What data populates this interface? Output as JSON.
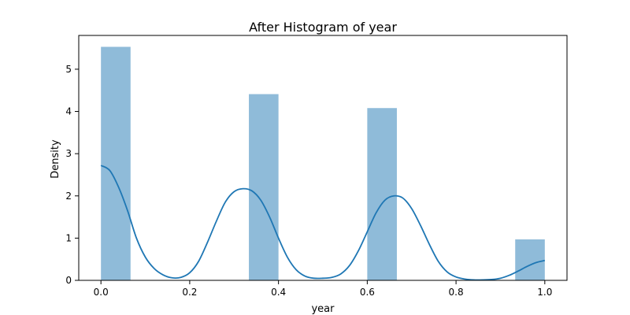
{
  "chart_data": {
    "type": "bar",
    "title": "After Histogram of year",
    "xlabel": "year",
    "ylabel": "Density",
    "xlim": [
      -0.05,
      1.05
    ],
    "ylim": [
      0,
      5.8
    ],
    "xticks": [
      "0.0",
      "0.2",
      "0.4",
      "0.6",
      "0.8",
      "1.0"
    ],
    "yticks": [
      "0",
      "1",
      "2",
      "3",
      "4",
      "5"
    ],
    "grid": false,
    "bins": [
      {
        "x0": 0.0,
        "x1": 0.0667,
        "density": 5.53
      },
      {
        "x0": 0.3333,
        "x1": 0.4,
        "density": 4.41
      },
      {
        "x0": 0.6,
        "x1": 0.6667,
        "density": 4.08
      },
      {
        "x0": 0.9333,
        "x1": 1.0,
        "density": 0.97
      }
    ],
    "kde": {
      "x": [
        0.0,
        0.02,
        0.04,
        0.06,
        0.08,
        0.1,
        0.12,
        0.14,
        0.16,
        0.18,
        0.2,
        0.22,
        0.24,
        0.26,
        0.28,
        0.3,
        0.32,
        0.34,
        0.36,
        0.38,
        0.4,
        0.42,
        0.44,
        0.46,
        0.48,
        0.5,
        0.52,
        0.54,
        0.56,
        0.58,
        0.6,
        0.62,
        0.64,
        0.66,
        0.68,
        0.7,
        0.72,
        0.74,
        0.76,
        0.78,
        0.8,
        0.82,
        0.84,
        0.86,
        0.88,
        0.9,
        0.92,
        0.94,
        0.96,
        0.98,
        1.0
      ],
      "y": [
        2.72,
        2.6,
        2.2,
        1.65,
        1.0,
        0.55,
        0.28,
        0.13,
        0.06,
        0.07,
        0.18,
        0.45,
        0.9,
        1.4,
        1.85,
        2.1,
        2.17,
        2.12,
        1.9,
        1.5,
        1.0,
        0.55,
        0.25,
        0.1,
        0.05,
        0.05,
        0.07,
        0.15,
        0.35,
        0.7,
        1.15,
        1.6,
        1.9,
        2.0,
        1.95,
        1.7,
        1.3,
        0.85,
        0.45,
        0.2,
        0.08,
        0.03,
        0.01,
        0.01,
        0.02,
        0.05,
        0.12,
        0.22,
        0.33,
        0.42,
        0.47
      ]
    }
  }
}
